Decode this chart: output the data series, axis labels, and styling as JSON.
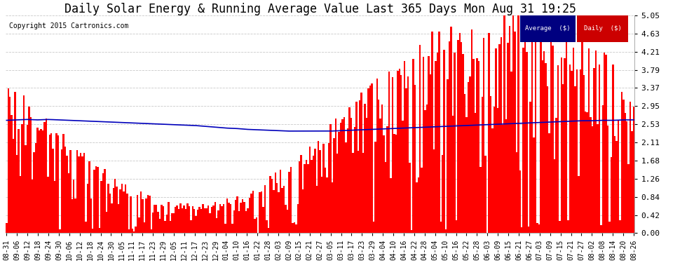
{
  "title": "Daily Solar Energy & Running Average Value Last 365 Days Mon Aug 31 19:25",
  "copyright": "Copyright 2015 Cartronics.com",
  "ylim": [
    0.0,
    5.05
  ],
  "yticks": [
    0.0,
    0.42,
    0.84,
    1.26,
    1.68,
    2.11,
    2.53,
    2.95,
    3.37,
    3.79,
    4.21,
    4.63,
    5.05
  ],
  "bar_color": "#FF0000",
  "avg_color": "#0000BB",
  "bg_color": "#FFFFFF",
  "grid_color": "#BBBBBB",
  "title_fontsize": 12,
  "legend_avg_bg": "#000080",
  "legend_daily_bg": "#CC0000",
  "legend_text_color": "#FFFFFF",
  "xtick_labels": [
    "08-31",
    "09-06",
    "09-12",
    "09-18",
    "09-24",
    "09-30",
    "10-06",
    "10-12",
    "10-18",
    "10-24",
    "10-30",
    "11-05",
    "11-11",
    "11-17",
    "11-23",
    "11-29",
    "12-05",
    "12-11",
    "12-17",
    "12-23",
    "12-29",
    "01-04",
    "01-10",
    "01-16",
    "01-22",
    "01-28",
    "02-03",
    "02-09",
    "02-15",
    "02-21",
    "02-27",
    "03-05",
    "03-11",
    "03-17",
    "03-23",
    "03-29",
    "04-04",
    "04-10",
    "04-16",
    "04-22",
    "04-28",
    "05-04",
    "05-10",
    "05-16",
    "05-22",
    "05-28",
    "06-03",
    "06-09",
    "06-15",
    "06-21",
    "06-27",
    "07-03",
    "07-09",
    "07-15",
    "07-21",
    "07-27",
    "08-02",
    "08-08",
    "08-14",
    "08-20",
    "08-26"
  ],
  "avg_values": [
    2.62,
    2.63,
    2.64,
    2.63,
    2.64,
    2.63,
    2.62,
    2.61,
    2.6,
    2.59,
    2.58,
    2.57,
    2.56,
    2.55,
    2.54,
    2.53,
    2.52,
    2.51,
    2.5,
    2.48,
    2.46,
    2.44,
    2.43,
    2.41,
    2.4,
    2.39,
    2.38,
    2.37,
    2.37,
    2.37,
    2.37,
    2.37,
    2.38,
    2.39,
    2.4,
    2.41,
    2.42,
    2.43,
    2.44,
    2.45,
    2.46,
    2.47,
    2.48,
    2.49,
    2.5,
    2.51,
    2.52,
    2.53,
    2.54,
    2.55,
    2.56,
    2.57,
    2.58,
    2.59,
    2.6,
    2.61,
    2.61,
    2.62,
    2.62,
    2.63,
    2.63
  ]
}
